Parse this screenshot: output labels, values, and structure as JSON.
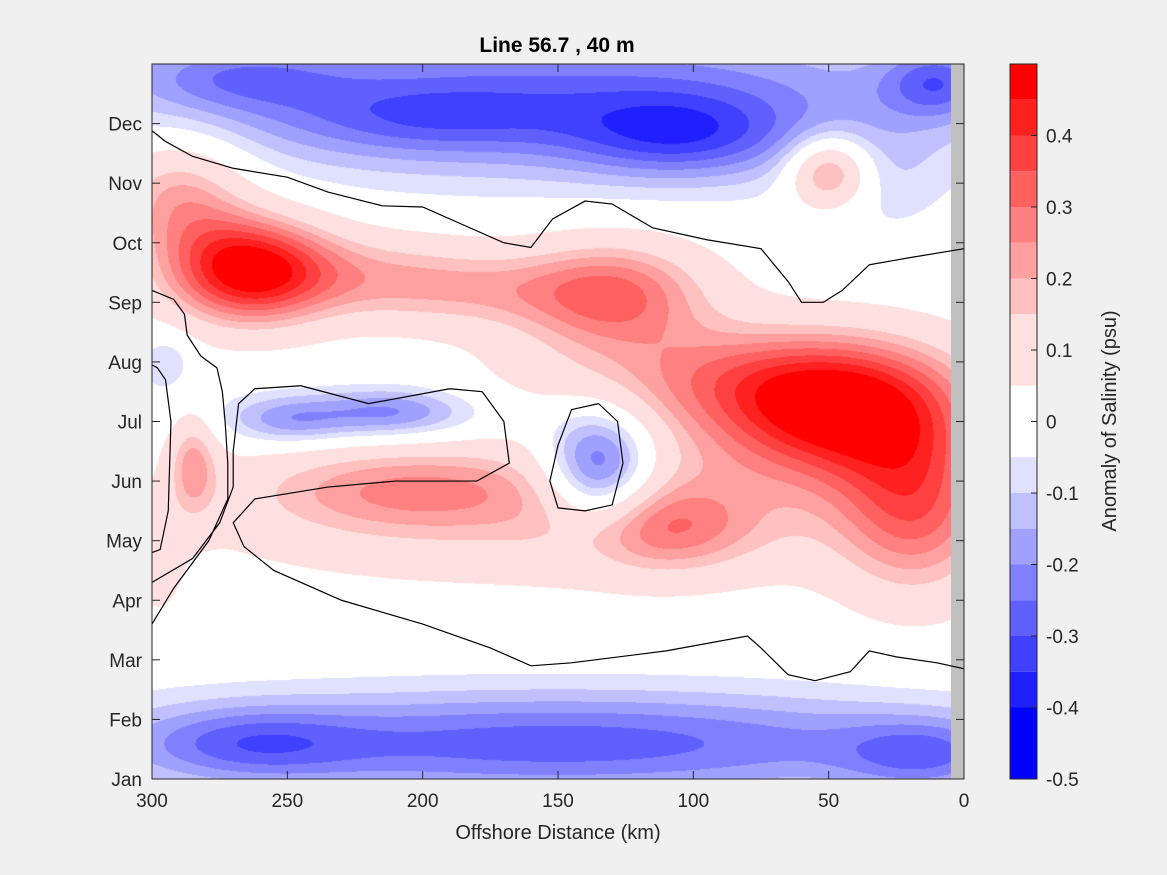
{
  "chart_data": {
    "type": "heatmap",
    "subtype": "filled-contour",
    "title": "Line 56.7 , 40 m",
    "xlabel": "Offshore Distance (km)",
    "ylabel": "",
    "xlim": [
      300,
      0
    ],
    "x_reversed": true,
    "x_ticks": [
      300,
      250,
      200,
      150,
      100,
      50,
      0
    ],
    "x_tick_labels": [
      "300",
      "250",
      "200",
      "150",
      "100",
      "50",
      "0"
    ],
    "y_tick_labels": [
      "Jan",
      "Feb",
      "Mar",
      "Apr",
      "May",
      "Jun",
      "Jul",
      "Aug",
      "Sep",
      "Oct",
      "Nov",
      "Dec"
    ],
    "colorbar": {
      "label": "Anomaly of Salinity (psu)",
      "range": [
        -0.5,
        0.5
      ],
      "ticks": [
        0.4,
        0.3,
        0.2,
        0.1,
        0,
        -0.1,
        -0.2,
        -0.3,
        -0.4,
        -0.5
      ],
      "tick_labels": [
        "0.4",
        "0.3",
        "0.2",
        "0.1",
        "0",
        "-0.1",
        "-0.2",
        "-0.3",
        "-0.4",
        "-0.5"
      ],
      "levels": [
        {
          "from": 0.45,
          "to": 0.5,
          "color": "#ff0000"
        },
        {
          "from": 0.4,
          "to": 0.45,
          "color": "#ff2020"
        },
        {
          "from": 0.35,
          "to": 0.4,
          "color": "#ff4040"
        },
        {
          "from": 0.3,
          "to": 0.35,
          "color": "#ff6060"
        },
        {
          "from": 0.25,
          "to": 0.3,
          "color": "#ff8080"
        },
        {
          "from": 0.2,
          "to": 0.25,
          "color": "#ffa0a0"
        },
        {
          "from": 0.15,
          "to": 0.2,
          "color": "#ffc0c0"
        },
        {
          "from": 0.1,
          "to": 0.15,
          "color": "#ffe0e0"
        },
        {
          "from": 0.05,
          "to": 0.1,
          "color": "#ffe0e0"
        },
        {
          "from": 0,
          "to": 0.05,
          "color": "#ffffff"
        },
        {
          "from": -0.05,
          "to": 0,
          "color": "#ffffff"
        },
        {
          "from": -0.1,
          "to": -0.05,
          "color": "#e0e0ff"
        },
        {
          "from": -0.15,
          "to": -0.1,
          "color": "#c0c0ff"
        },
        {
          "from": -0.2,
          "to": -0.15,
          "color": "#a0a0ff"
        },
        {
          "from": -0.25,
          "to": -0.2,
          "color": "#8080ff"
        },
        {
          "from": -0.3,
          "to": -0.25,
          "color": "#6060ff"
        },
        {
          "from": -0.35,
          "to": -0.3,
          "color": "#4040ff"
        },
        {
          "from": -0.4,
          "to": -0.35,
          "color": "#2020ff"
        },
        {
          "from": -0.5,
          "to": -0.4,
          "color": "#0000ff"
        }
      ]
    },
    "blobs": [
      {
        "x": 265,
        "y": 8.55,
        "rx": 30,
        "ry": 0.9,
        "v": 0.46,
        "rot": 10
      },
      {
        "x": 220,
        "y": 8.45,
        "rx": 45,
        "ry": 0.75,
        "v": 0.16
      },
      {
        "x": 290,
        "y": 9.8,
        "rx": 25,
        "ry": 1.0,
        "v": 0.22
      },
      {
        "x": 130,
        "y": 8.15,
        "rx": 35,
        "ry": 0.9,
        "v": 0.3
      },
      {
        "x": 180,
        "y": 8.2,
        "rx": 40,
        "ry": 0.65,
        "v": 0.12
      },
      {
        "x": 45,
        "y": 6.2,
        "rx": 45,
        "ry": 1.1,
        "v": 0.4
      },
      {
        "x": 18,
        "y": 4.6,
        "rx": 30,
        "ry": 1.5,
        "v": 0.3
      },
      {
        "x": 90,
        "y": 6.8,
        "rx": 70,
        "ry": 0.9,
        "v": 0.18
      },
      {
        "x": 205,
        "y": 4.9,
        "rx": 60,
        "ry": 0.75,
        "v": 0.2
      },
      {
        "x": 112,
        "y": 4.2,
        "rx": 35,
        "ry": 0.75,
        "v": 0.2
      },
      {
        "x": 170,
        "y": 4.3,
        "rx": 110,
        "ry": 1.1,
        "v": 0.11
      },
      {
        "x": 75,
        "y": 5.5,
        "rx": 60,
        "ry": 1.6,
        "v": 0.1
      },
      {
        "x": 285,
        "y": 5.3,
        "rx": 9,
        "ry": 0.9,
        "v": 0.2
      },
      {
        "x": 298,
        "y": 3.7,
        "rx": 8,
        "ry": 0.8,
        "v": 0.12
      },
      {
        "x": 135,
        "y": 5.2,
        "rx": 20,
        "ry": 1.0,
        "v": -0.35
      },
      {
        "x": 225,
        "y": 6.1,
        "rx": 50,
        "ry": 0.45,
        "v": -0.14
      },
      {
        "x": 250,
        "y": 6.0,
        "rx": 20,
        "ry": 0.4,
        "v": -0.1
      },
      {
        "x": 210,
        "y": 6.2,
        "rx": 25,
        "ry": 0.4,
        "v": -0.1
      },
      {
        "x": 295,
        "y": 7.0,
        "rx": 10,
        "ry": 0.5,
        "v": -0.1
      },
      {
        "x": 150,
        "y": 11.4,
        "rx": 150,
        "ry": 1.3,
        "v": -0.26
      },
      {
        "x": 105,
        "y": 10.8,
        "rx": 40,
        "ry": 0.7,
        "v": -0.18
      },
      {
        "x": 200,
        "y": 11.1,
        "rx": 50,
        "ry": 0.6,
        "v": -0.1
      },
      {
        "x": 270,
        "y": 11.8,
        "rx": 40,
        "ry": 0.6,
        "v": -0.14
      },
      {
        "x": 10,
        "y": 11.7,
        "rx": 20,
        "ry": 0.6,
        "v": -0.2
      },
      {
        "x": 50,
        "y": 10.2,
        "rx": 15,
        "ry": 0.6,
        "v": 0.3
      },
      {
        "x": 30,
        "y": 10.0,
        "rx": 25,
        "ry": 1.0,
        "v": -0.06
      },
      {
        "x": 150,
        "y": 0.6,
        "rx": 160,
        "ry": 0.9,
        "v": -0.28
      },
      {
        "x": 265,
        "y": 0.6,
        "rx": 40,
        "ry": 0.6,
        "v": -0.14
      },
      {
        "x": 15,
        "y": 0.4,
        "rx": 30,
        "ry": 0.6,
        "v": -0.16
      }
    ],
    "zero_contours": [
      [
        [
          300,
          10.88
        ],
        [
          295,
          10.7
        ],
        [
          285,
          10.45
        ],
        [
          270,
          10.25
        ],
        [
          250,
          10.1
        ],
        [
          235,
          9.85
        ],
        [
          215,
          9.62
        ],
        [
          200,
          9.6
        ],
        [
          185,
          9.3
        ],
        [
          170,
          9.0
        ],
        [
          160,
          8.92
        ],
        [
          152,
          9.4
        ],
        [
          140,
          9.7
        ],
        [
          130,
          9.65
        ],
        [
          115,
          9.25
        ],
        [
          95,
          9.05
        ],
        [
          75,
          8.9
        ],
        [
          65,
          8.35
        ],
        [
          60,
          8.0
        ],
        [
          52,
          8.0
        ],
        [
          45,
          8.2
        ],
        [
          35,
          8.63
        ],
        [
          20,
          8.75
        ],
        [
          0,
          8.9
        ]
      ],
      [
        [
          300,
          8.2
        ],
        [
          292,
          8.05
        ],
        [
          288,
          7.8
        ],
        [
          287,
          7.45
        ],
        [
          282,
          7.1
        ],
        [
          276,
          6.9
        ],
        [
          274,
          6.5
        ],
        [
          273,
          6.0
        ],
        [
          272,
          5.3
        ],
        [
          272,
          4.7
        ],
        [
          279,
          4.0
        ],
        [
          292,
          3.2
        ],
        [
          300,
          2.6
        ]
      ],
      [
        [
          300,
          3.8
        ],
        [
          297,
          3.85
        ],
        [
          294,
          4.5
        ],
        [
          293,
          6.0
        ],
        [
          295,
          6.7
        ],
        [
          298,
          6.9
        ],
        [
          300,
          6.95
        ]
      ],
      [
        [
          245,
          6.6
        ],
        [
          262,
          6.55
        ],
        [
          268,
          6.3
        ],
        [
          270,
          5.5
        ],
        [
          270,
          4.9
        ],
        [
          275,
          4.3
        ],
        [
          285,
          3.7
        ],
        [
          300,
          3.3
        ]
      ],
      [
        [
          245,
          6.6
        ],
        [
          220,
          6.3
        ],
        [
          190,
          6.55
        ],
        [
          178,
          6.5
        ],
        [
          170,
          6.0
        ],
        [
          168,
          5.3
        ],
        [
          180,
          5.0
        ],
        [
          210,
          5.0
        ],
        [
          235,
          4.9
        ],
        [
          262,
          4.7
        ],
        [
          270,
          4.3
        ],
        [
          266,
          3.9
        ],
        [
          255,
          3.5
        ],
        [
          230,
          3.0
        ],
        [
          200,
          2.6
        ],
        [
          175,
          2.2
        ],
        [
          160,
          1.9
        ],
        [
          145,
          1.95
        ],
        [
          110,
          2.15
        ],
        [
          80,
          2.4
        ],
        [
          75,
          2.2
        ],
        [
          65,
          1.75
        ],
        [
          55,
          1.65
        ],
        [
          42,
          1.8
        ],
        [
          38,
          2.0
        ],
        [
          35,
          2.15
        ],
        [
          25,
          2.05
        ],
        [
          10,
          1.95
        ],
        [
          0,
          1.85
        ]
      ],
      [
        [
          135,
          6.3
        ],
        [
          145,
          6.2
        ],
        [
          150,
          5.6
        ],
        [
          153,
          5.0
        ],
        [
          150,
          4.55
        ],
        [
          140,
          4.5
        ],
        [
          130,
          4.6
        ],
        [
          126,
          5.3
        ],
        [
          128,
          6.0
        ],
        [
          135,
          6.3
        ]
      ]
    ]
  }
}
